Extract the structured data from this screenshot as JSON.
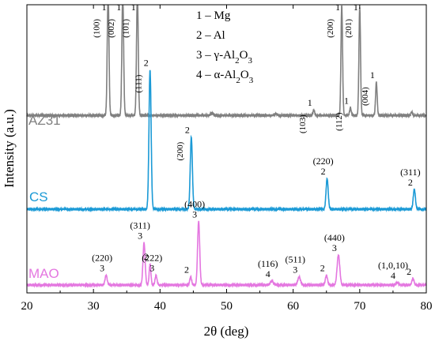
{
  "chart_data": {
    "type": "line",
    "title": "",
    "xlabel": "2θ (deg)",
    "ylabel": "Intensity (a.u.)",
    "xlim": [
      20,
      80
    ],
    "xticks": [
      "20",
      "30",
      "40",
      "50",
      "60",
      "70",
      "80"
    ],
    "grid": false,
    "legend_position": "top-center",
    "legend": [
      {
        "n": "1",
        "dash": " – ",
        "text": "Mg",
        "sub": "",
        "tail": ""
      },
      {
        "n": "2",
        "dash": " – ",
        "text": "Al",
        "sub": "",
        "tail": ""
      },
      {
        "n": "3",
        "dash": " – ",
        "text": "γ-Al",
        "sub": "2",
        "tail": "O",
        "sub2": "3"
      },
      {
        "n": "4",
        "dash": " – ",
        "text": "α-Al",
        "sub": "2",
        "tail": "O",
        "sub2": "3"
      }
    ],
    "series": [
      {
        "name": "AZ31",
        "color": "#808080",
        "baseline": 0.12,
        "peaks": [
          {
            "x": 32.2,
            "h": 1.1,
            "w": 0.13
          },
          {
            "x": 34.4,
            "h": 1.1,
            "w": 0.13
          },
          {
            "x": 36.6,
            "h": 1.1,
            "w": 0.13
          },
          {
            "x": 47.8,
            "h": 0.02,
            "w": 0.2
          },
          {
            "x": 57.4,
            "h": 0.015,
            "w": 0.2
          },
          {
            "x": 63.1,
            "h": 0.05,
            "w": 0.12
          },
          {
            "x": 67.3,
            "h": 1.0,
            "w": 0.12
          },
          {
            "x": 68.6,
            "h": 0.07,
            "w": 0.12
          },
          {
            "x": 70.0,
            "h": 0.98,
            "w": 0.12
          },
          {
            "x": 72.5,
            "h": 0.3,
            "w": 0.12
          },
          {
            "x": 77.8,
            "h": 0.03,
            "w": 0.12
          }
        ]
      },
      {
        "name": "CS",
        "color": "#1b9ad6",
        "baseline": 0.0,
        "peaks": [
          {
            "x": 38.5,
            "h": 1.68,
            "w": 0.16
          },
          {
            "x": 44.7,
            "h": 0.87,
            "w": 0.16
          },
          {
            "x": 65.1,
            "h": 0.37,
            "w": 0.16
          },
          {
            "x": 78.2,
            "h": 0.24,
            "w": 0.16
          }
        ]
      },
      {
        "name": "MAO",
        "color": "#e477e0",
        "baseline": 0.0,
        "peaks": [
          {
            "x": 31.9,
            "h": 0.12,
            "w": 0.16
          },
          {
            "x": 37.6,
            "h": 0.52,
            "w": 0.16
          },
          {
            "x": 38.5,
            "h": 0.26,
            "w": 0.13
          },
          {
            "x": 39.4,
            "h": 0.12,
            "w": 0.14
          },
          {
            "x": 44.6,
            "h": 0.1,
            "w": 0.14
          },
          {
            "x": 45.8,
            "h": 0.78,
            "w": 0.16
          },
          {
            "x": 56.8,
            "h": 0.05,
            "w": 0.22
          },
          {
            "x": 60.9,
            "h": 0.1,
            "w": 0.2
          },
          {
            "x": 65.0,
            "h": 0.12,
            "w": 0.16
          },
          {
            "x": 66.8,
            "h": 0.37,
            "w": 0.2
          },
          {
            "x": 75.6,
            "h": 0.03,
            "w": 0.2
          },
          {
            "x": 78.0,
            "h": 0.08,
            "w": 0.16
          }
        ]
      }
    ],
    "annotations": [
      {
        "series": "AZ31",
        "x": 32.2,
        "label": "1",
        "hkl": "(100)"
      },
      {
        "series": "AZ31",
        "x": 34.4,
        "label": "1",
        "hkl": "(002)"
      },
      {
        "series": "AZ31",
        "x": 36.6,
        "label": "1",
        "hkl": "(101)"
      },
      {
        "series": "AZ31",
        "x": 63.1,
        "label": "1",
        "hkl": "(103)"
      },
      {
        "series": "AZ31",
        "x": 67.3,
        "label": "1",
        "hkl": "(200)"
      },
      {
        "series": "AZ31",
        "x": 68.6,
        "label": "1",
        "hkl": "(112)"
      },
      {
        "series": "AZ31",
        "x": 70.0,
        "label": "1",
        "hkl": "(201)"
      },
      {
        "series": "AZ31",
        "x": 72.5,
        "label": "1",
        "hkl": "(004)"
      },
      {
        "series": "CS",
        "x": 38.5,
        "label": "2",
        "hkl": "(111)"
      },
      {
        "series": "CS",
        "x": 44.7,
        "label": "2",
        "hkl": "(200)"
      },
      {
        "series": "CS",
        "x": 65.1,
        "label": "2",
        "hkl": "(220)"
      },
      {
        "series": "CS",
        "x": 78.2,
        "label": "2",
        "hkl": "(311)"
      },
      {
        "series": "MAO",
        "x": 31.9,
        "label": "3",
        "hkl": "(220)"
      },
      {
        "series": "MAO",
        "x": 37.6,
        "label": "3",
        "hkl": "(311)"
      },
      {
        "series": "MAO",
        "x": 38.5,
        "label": "2",
        "hkl": ""
      },
      {
        "series": "MAO",
        "x": 39.4,
        "label": "3",
        "hkl": "(222)"
      },
      {
        "series": "MAO",
        "x": 44.6,
        "label": "2",
        "hkl": ""
      },
      {
        "series": "MAO",
        "x": 45.8,
        "label": "3",
        "hkl": "(400)"
      },
      {
        "series": "MAO",
        "x": 56.8,
        "label": "4",
        "hkl": "(116)"
      },
      {
        "series": "MAO",
        "x": 60.9,
        "label": "3",
        "hkl": "(511)"
      },
      {
        "series": "MAO",
        "x": 65.0,
        "label": "2",
        "hkl": ""
      },
      {
        "series": "MAO",
        "x": 66.8,
        "label": "3",
        "hkl": "(440)"
      },
      {
        "series": "MAO",
        "x": 75.6,
        "label": "4",
        "hkl": "(1,0,10)"
      },
      {
        "series": "MAO",
        "x": 78.0,
        "label": "2",
        "hkl": ""
      }
    ]
  }
}
